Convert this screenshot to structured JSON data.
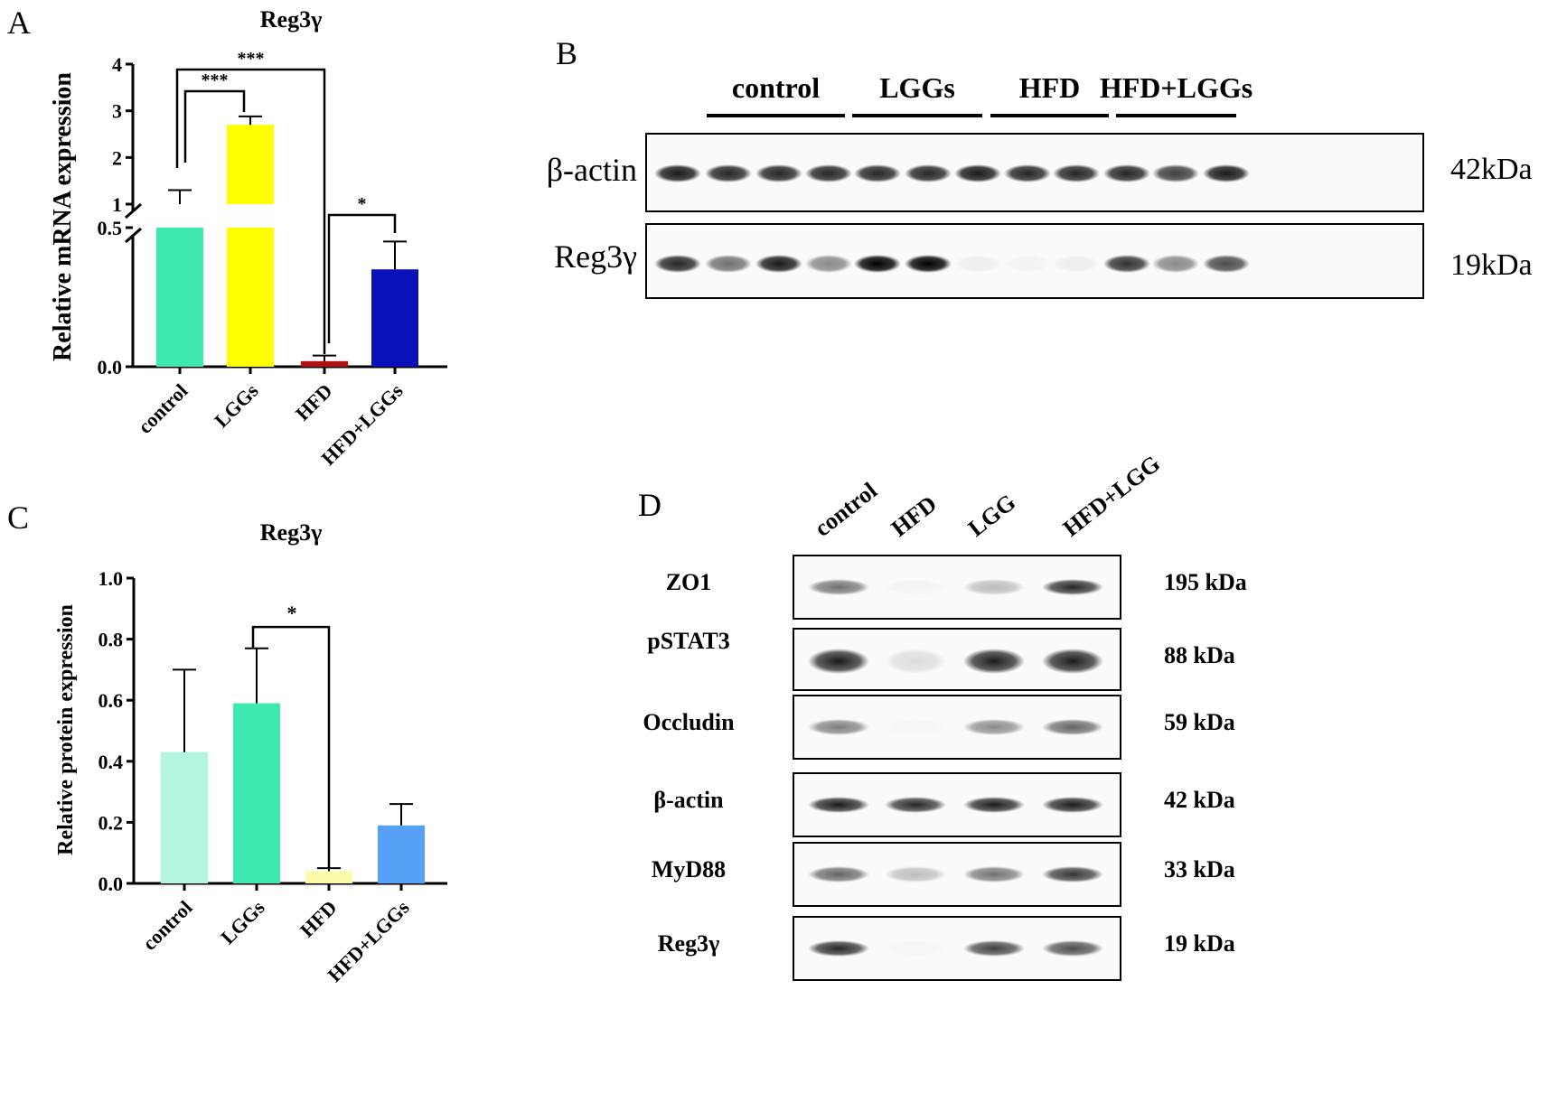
{
  "panels": {
    "A": "A",
    "B": "B",
    "C": "C",
    "D": "D"
  },
  "chart_data": [
    {
      "type": "bar",
      "title": "Reg3γ",
      "ylabel": "Relative mRNA expression",
      "categories": [
        "control",
        "LGGs",
        "HFD",
        "HFD+LGGs"
      ],
      "values": [
        1.0,
        2.7,
        0.02,
        0.35
      ],
      "errors": [
        0.3,
        0.18,
        0.02,
        0.1
      ],
      "colors": [
        "#3ee8b0",
        "#ffff00",
        "#b01010",
        "#0a10b8"
      ],
      "y_axis_break": {
        "lower": [
          0,
          0.5
        ],
        "upper": [
          1,
          4
        ]
      },
      "lower_ticks": [
        "0.0",
        "0.5"
      ],
      "upper_ticks": [
        "1",
        "2",
        "3",
        "4"
      ],
      "significance": [
        {
          "from": "control",
          "to": "LGGs",
          "label": "***"
        },
        {
          "from": "control",
          "to": "HFD",
          "label": "***"
        },
        {
          "from": "HFD",
          "to": "HFD+LGGs",
          "label": "*"
        }
      ]
    },
    {
      "type": "bar",
      "title": "Reg3γ",
      "ylabel": "Relative protein expression",
      "categories": [
        "control",
        "LGGs",
        "HFD",
        "HFD+LGGs"
      ],
      "values": [
        0.43,
        0.59,
        0.04,
        0.19
      ],
      "errors": [
        0.27,
        0.18,
        0.01,
        0.07
      ],
      "colors": [
        "#b2f5e0",
        "#3ee8b0",
        "#fafaa8",
        "#56a0f5"
      ],
      "ylim": [
        0,
        1.0
      ],
      "yticks": [
        "0.0",
        "0.2",
        "0.4",
        "0.6",
        "0.8",
        "1.0"
      ],
      "significance": [
        {
          "from": "LGGs",
          "to": "HFD",
          "label": "*"
        }
      ]
    }
  ],
  "blotB": {
    "groups": [
      "control",
      "LGGs",
      "HFD",
      "HFD+LGGs"
    ],
    "rows": [
      {
        "label": "β-actin",
        "size": "42kDa",
        "intensities": [
          0.9,
          0.85,
          0.85,
          0.85,
          0.85,
          0.85,
          0.9,
          0.85,
          0.85,
          0.85,
          0.75,
          0.9
        ]
      },
      {
        "label": "Reg3γ",
        "size": "19kDa",
        "intensities": [
          0.85,
          0.55,
          0.9,
          0.45,
          1.0,
          1.0,
          0.05,
          0.03,
          0.05,
          0.8,
          0.45,
          0.7
        ]
      }
    ]
  },
  "blotD": {
    "lanes": [
      "control",
      "HFD",
      "LGG",
      "HFD+LGG"
    ],
    "rows": [
      {
        "label": "ZO1",
        "size": "195 kDa",
        "intensities": [
          0.55,
          0.03,
          0.25,
          0.85
        ]
      },
      {
        "label": "pSTAT3",
        "size": "88 kDa",
        "intensities": [
          0.9,
          0.12,
          0.9,
          0.9
        ]
      },
      {
        "label": "Occludin",
        "size": "59 kDa",
        "intensities": [
          0.5,
          0.02,
          0.45,
          0.6
        ]
      },
      {
        "label": "β-actin",
        "size": "42 kDa",
        "intensities": [
          0.9,
          0.85,
          0.9,
          0.9
        ]
      },
      {
        "label": "MyD88",
        "size": "33 kDa",
        "intensities": [
          0.6,
          0.25,
          0.55,
          0.8
        ]
      },
      {
        "label": "Reg3γ",
        "size": "19 kDa",
        "intensities": [
          0.85,
          0.02,
          0.75,
          0.7
        ]
      }
    ]
  }
}
